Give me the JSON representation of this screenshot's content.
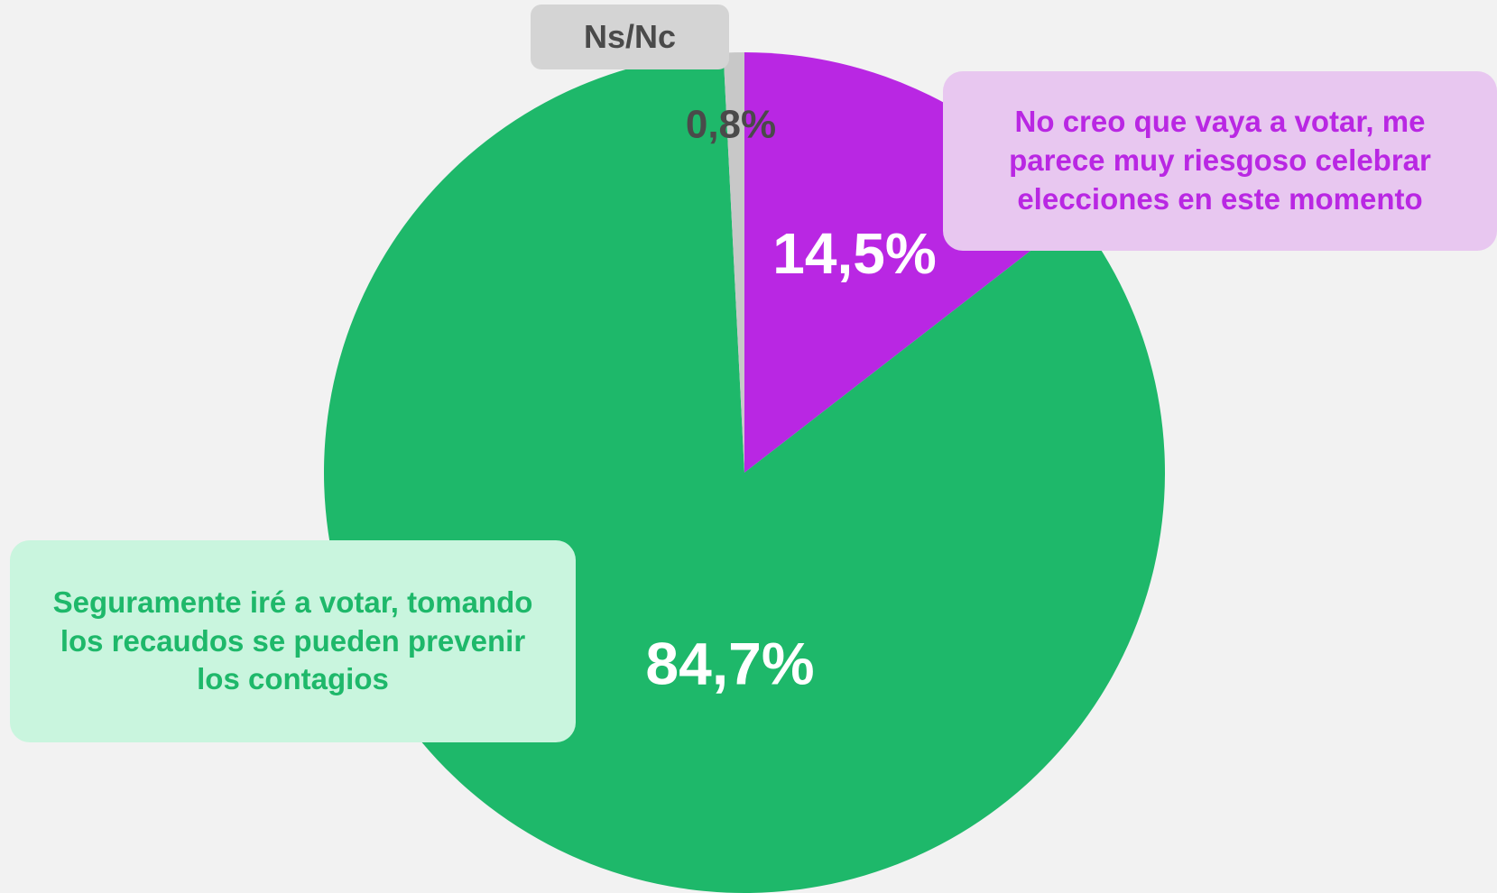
{
  "chart_data": {
    "type": "pie",
    "categories": [
      "No creo que vaya a votar, me parece muy riesgoso celebrar elecciones en este momento",
      "Seguramente iré a votar, tomando los recaudos se pueden prevenir los contagios",
      "Ns/Nc"
    ],
    "values": [
      14.5,
      84.7,
      0.8
    ],
    "value_labels": [
      "14,5%",
      "84,7%",
      "0,8%"
    ],
    "colors": [
      "#b927e3",
      "#1eb86a",
      "#c8c8c8"
    ]
  }
}
